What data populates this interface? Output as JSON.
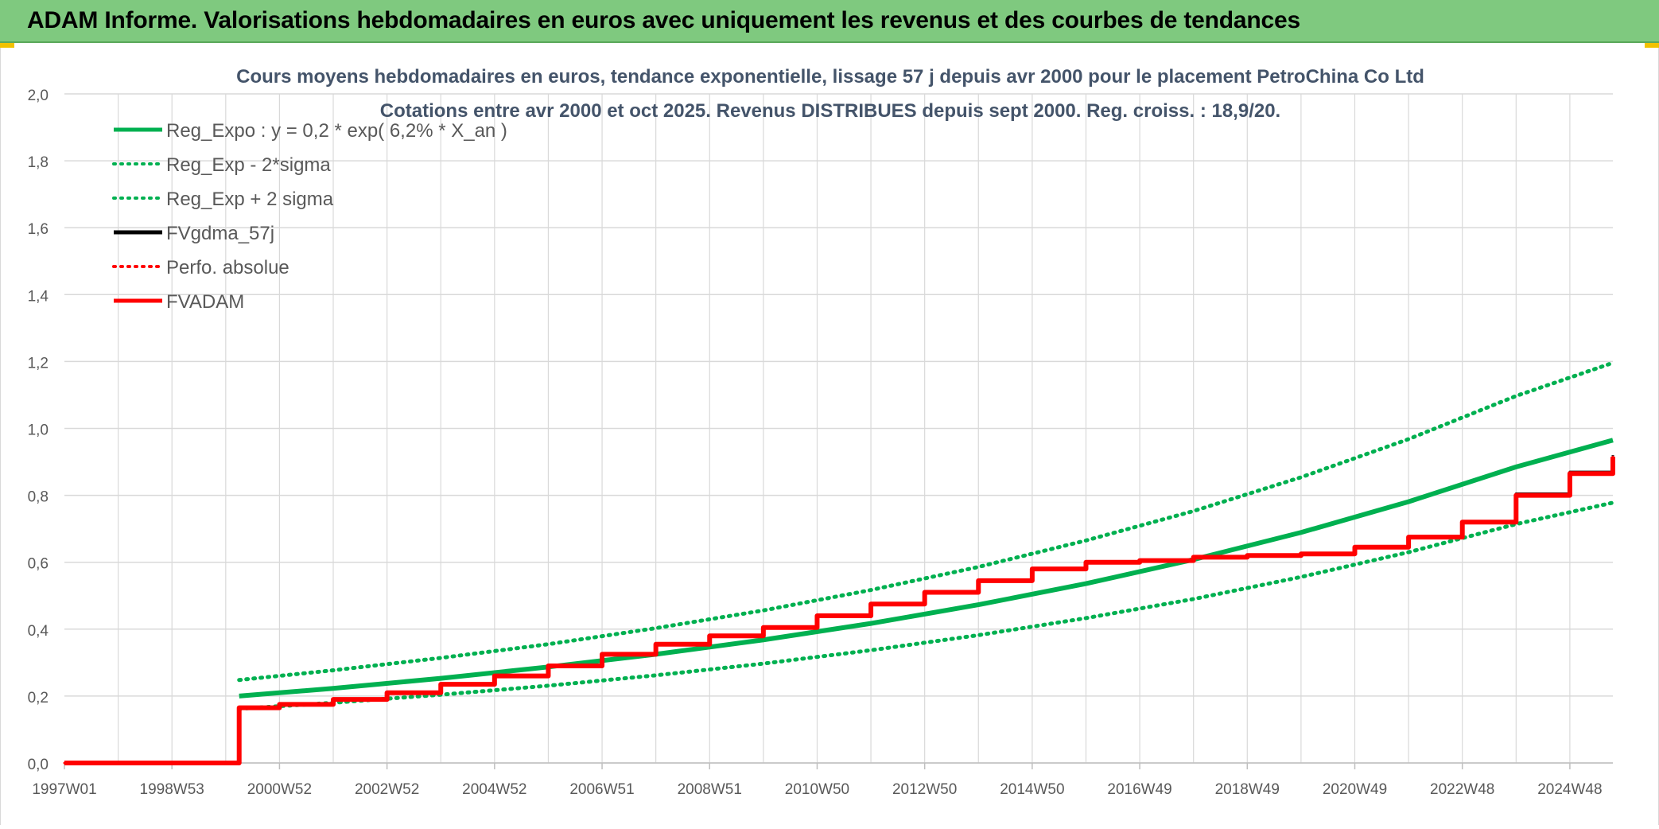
{
  "header": {
    "title": "ADAM Informe. Valorisations hebdomadaires en euros avec uniquement les revenus et des courbes de tendances"
  },
  "colors": {
    "banner": "#7fc97f",
    "reg_expo": "#00b050",
    "perfo": "#ff0000",
    "fvgdma": "#000000",
    "grid": "#d9d9d9"
  },
  "chart_data": {
    "type": "line",
    "title_line1": "Cours moyens hebdomadaires en euros, tendance exponentielle, lissage 57 j depuis avr 2000 pour le placement PetroChina Co Ltd",
    "title_line2": "Cotations entre avr 2000 et oct 2025. Revenus DISTRIBUES depuis sept 2000. Reg. croiss. : 18,9/20.",
    "xlabel": "",
    "ylabel": "",
    "ylim": [
      0,
      2.0
    ],
    "xlim": [
      1997.0,
      2025.8
    ],
    "yticks": [
      "0,0",
      "0,2",
      "0,4",
      "0,6",
      "0,8",
      "1,0",
      "1,2",
      "1,4",
      "1,6",
      "1,8",
      "2,0"
    ],
    "xticks": [
      "1997W01",
      "1998W53",
      "2000W52",
      "2002W52",
      "2004W52",
      "2006W51",
      "2008W51",
      "2010W50",
      "2012W50",
      "2014W50",
      "2016W49",
      "2018W49",
      "2020W49",
      "2022W48",
      "2024W48"
    ],
    "xtick_values": [
      1997.0,
      1999.0,
      2001.0,
      2003.0,
      2005.0,
      2007.0,
      2009.0,
      2011.0,
      2013.0,
      2015.0,
      2017.0,
      2019.0,
      2021.0,
      2023.0,
      2025.0
    ],
    "grid": true,
    "legend_position": "top-left",
    "series": [
      {
        "name": "Reg_Expo : y = 0,2 * exp( 6,2% *  X_an )",
        "color": "#00b050",
        "style": "solid",
        "width": 6,
        "x": [
          2000.25,
          2002,
          2004,
          2006,
          2008,
          2010,
          2012,
          2014,
          2016,
          2018,
          2020,
          2022,
          2024,
          2025.8
        ],
        "y": [
          0.2,
          0.223,
          0.253,
          0.287,
          0.325,
          0.368,
          0.417,
          0.473,
          0.536,
          0.608,
          0.689,
          0.781,
          0.885,
          0.965
        ]
      },
      {
        "name": "Reg_Exp - 2*sigma",
        "color": "#00b050",
        "style": "dotted",
        "width": 5,
        "x": [
          2000.25,
          2002,
          2004,
          2006,
          2008,
          2010,
          2012,
          2014,
          2016,
          2018,
          2020,
          2022,
          2024,
          2025.8
        ],
        "y": [
          0.162,
          0.18,
          0.204,
          0.231,
          0.262,
          0.297,
          0.337,
          0.382,
          0.433,
          0.49,
          0.556,
          0.63,
          0.714,
          0.778
        ]
      },
      {
        "name": "Reg_Exp + 2 sigma",
        "color": "#00b050",
        "style": "dotted",
        "width": 5,
        "x": [
          2000.25,
          2002,
          2004,
          2006,
          2008,
          2010,
          2012,
          2014,
          2016,
          2018,
          2020,
          2022,
          2024,
          2025.8
        ],
        "y": [
          0.248,
          0.277,
          0.314,
          0.355,
          0.403,
          0.456,
          0.517,
          0.586,
          0.665,
          0.753,
          0.854,
          0.968,
          1.097,
          1.196
        ]
      },
      {
        "name": "FVgdma_57j",
        "color": "#000000",
        "style": "solid",
        "width": 3,
        "x": [
          1997.0,
          2000.25,
          2000.25,
          2001.0,
          2002.0,
          2003.0,
          2004.0,
          2005.0,
          2006.0,
          2007.0,
          2008.0,
          2009.0,
          2010.0,
          2011.0,
          2012.0,
          2013.0,
          2014.0,
          2015.0,
          2016.0,
          2017.0,
          2018.0,
          2019.0,
          2020.0,
          2021.0,
          2022.0,
          2023.0,
          2024.0,
          2025.0,
          2025.8
        ],
        "y": [
          0.0,
          0.0,
          0.165,
          0.175,
          0.19,
          0.21,
          0.235,
          0.26,
          0.29,
          0.325,
          0.355,
          0.38,
          0.405,
          0.44,
          0.475,
          0.51,
          0.545,
          0.58,
          0.6,
          0.605,
          0.615,
          0.62,
          0.625,
          0.645,
          0.675,
          0.72,
          0.805,
          0.87,
          0.92
        ]
      },
      {
        "name": "Perfo. absolue",
        "color": "#ff0000",
        "style": "dotted",
        "width": 3,
        "x": [
          1997.0,
          2000.25,
          2000.25,
          2001.0,
          2002.0,
          2003.0,
          2004.0,
          2005.0,
          2006.0,
          2007.0,
          2008.0,
          2009.0,
          2010.0,
          2011.0,
          2012.0,
          2013.0,
          2014.0,
          2015.0,
          2016.0,
          2017.0,
          2018.0,
          2019.0,
          2020.0,
          2021.0,
          2022.0,
          2023.0,
          2024.0,
          2025.0,
          2025.8
        ],
        "y": [
          0.0,
          0.0,
          0.165,
          0.175,
          0.19,
          0.21,
          0.235,
          0.26,
          0.29,
          0.325,
          0.355,
          0.38,
          0.405,
          0.44,
          0.475,
          0.51,
          0.545,
          0.58,
          0.6,
          0.605,
          0.615,
          0.62,
          0.625,
          0.645,
          0.675,
          0.72,
          0.8,
          0.865,
          0.915
        ]
      },
      {
        "name": "FVADAM",
        "color": "#ff0000",
        "style": "solid",
        "width": 6,
        "x": [
          1997.0,
          2000.25,
          2000.25,
          2001.0,
          2002.0,
          2003.0,
          2004.0,
          2005.0,
          2006.0,
          2007.0,
          2008.0,
          2009.0,
          2010.0,
          2011.0,
          2012.0,
          2013.0,
          2014.0,
          2015.0,
          2016.0,
          2017.0,
          2018.0,
          2019.0,
          2020.0,
          2021.0,
          2022.0,
          2023.0,
          2024.0,
          2025.0,
          2025.8
        ],
        "y": [
          0.0,
          0.0,
          0.165,
          0.175,
          0.19,
          0.21,
          0.235,
          0.26,
          0.29,
          0.325,
          0.355,
          0.38,
          0.405,
          0.44,
          0.475,
          0.51,
          0.545,
          0.58,
          0.6,
          0.605,
          0.615,
          0.62,
          0.625,
          0.645,
          0.675,
          0.72,
          0.8,
          0.865,
          0.915
        ]
      }
    ]
  }
}
